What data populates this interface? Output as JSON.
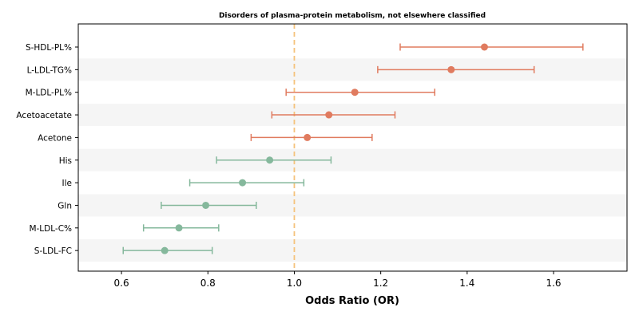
{
  "chart_data": {
    "type": "forest",
    "title": "Disorders of plasma-protein metabolism, not elsewhere classified",
    "xlabel": "Odds Ratio (OR)",
    "ylabel": "",
    "xlim": [
      0.5,
      1.77
    ],
    "xticks": [
      0.6,
      0.8,
      1.0,
      1.2,
      1.4,
      1.6
    ],
    "xtick_labels": [
      "0.6",
      "0.8",
      "1.0",
      "1.2",
      "1.4",
      "1.6"
    ],
    "reference_line": 1.0,
    "colors": {
      "risk": "#e07b5f",
      "protective": "#85b89c",
      "reference": "#f5c27a",
      "band": "#f5f5f5"
    },
    "rows": [
      {
        "label": "S-HDL-PL%",
        "or": 1.44,
        "lower": 1.245,
        "upper": 1.668,
        "group": "risk"
      },
      {
        "label": "L-LDL-TG%",
        "or": 1.363,
        "lower": 1.193,
        "upper": 1.555,
        "group": "risk"
      },
      {
        "label": "M-LDL-PL%",
        "or": 1.14,
        "lower": 0.981,
        "upper": 1.325,
        "group": "risk"
      },
      {
        "label": "Acetoacetate",
        "or": 1.08,
        "lower": 0.948,
        "upper": 1.233,
        "group": "risk"
      },
      {
        "label": "Acetone",
        "or": 1.03,
        "lower": 0.9,
        "upper": 1.18,
        "group": "risk"
      },
      {
        "label": "His",
        "or": 0.943,
        "lower": 0.82,
        "upper": 1.085,
        "group": "protective"
      },
      {
        "label": "Ile",
        "or": 0.88,
        "lower": 0.758,
        "upper": 1.022,
        "group": "protective"
      },
      {
        "label": "Gln",
        "or": 0.795,
        "lower": 0.692,
        "upper": 0.912,
        "group": "protective"
      },
      {
        "label": "M-LDL-C%",
        "or": 0.733,
        "lower": 0.651,
        "upper": 0.825,
        "group": "protective"
      },
      {
        "label": "S-LDL-FC",
        "or": 0.7,
        "lower": 0.604,
        "upper": 0.81,
        "group": "protective"
      }
    ]
  }
}
